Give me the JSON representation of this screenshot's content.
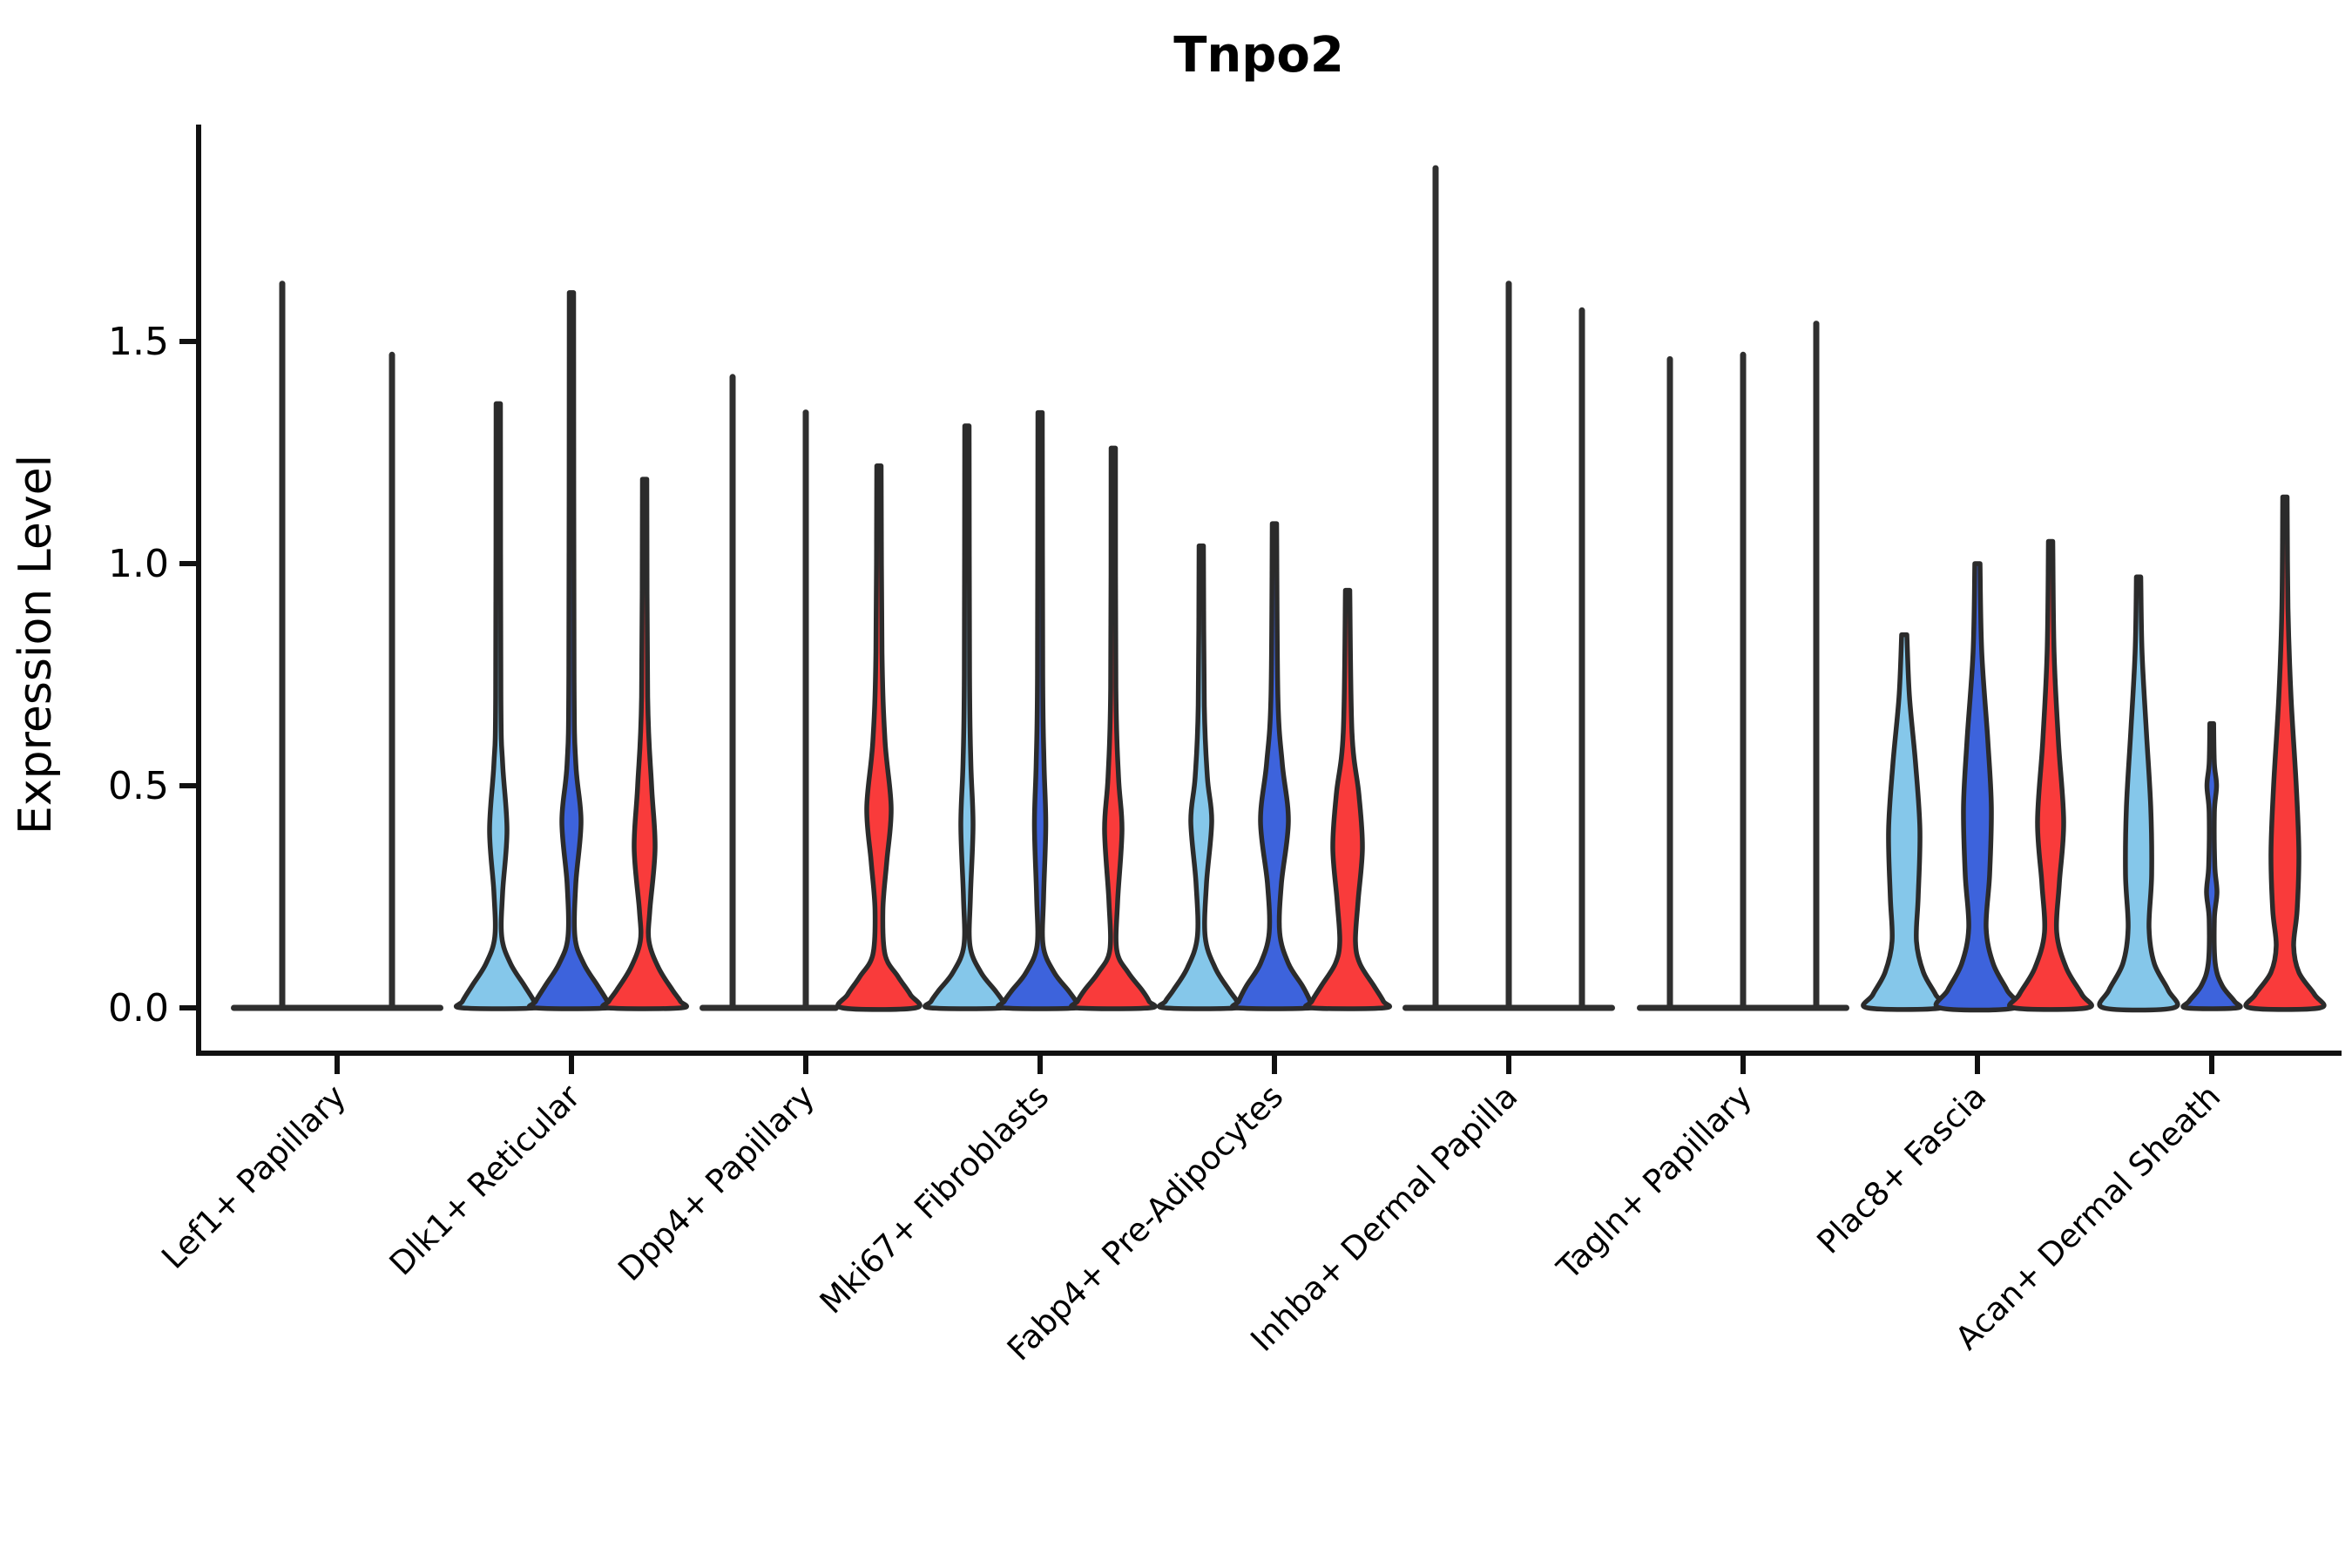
{
  "title": "Tnpo2",
  "axes": {
    "ylabel": "Expression Level",
    "yticks": [
      {
        "label": "0.0",
        "value": 0.0
      },
      {
        "label": "0.5",
        "value": 0.5
      },
      {
        "label": "1.0",
        "value": 1.0
      },
      {
        "label": "1.5",
        "value": 1.5
      }
    ],
    "ylim": [
      -0.1,
      1.99
    ],
    "grid": false,
    "legend": "none"
  },
  "palette": {
    "sample_colors": [
      "#85C7EA",
      "#3D63DC",
      "#F93B3B"
    ],
    "outline": "#2b2b2b",
    "spike": "#2f2f2f",
    "spine": "#111111",
    "text": "#000000"
  },
  "chart_data": {
    "type": "violin",
    "title": "Tnpo2",
    "xlabel": "",
    "ylabel": "Expression Level",
    "ylim": [
      -0.1,
      1.99
    ],
    "yticks": [
      0.0,
      0.5,
      1.0,
      1.5
    ],
    "categories": [
      "Lef1+ Papillary",
      "Dlk1+ Reticular",
      "Dpp4+ Papillary",
      "Mki67+ Fibroblasts",
      "Fabp4+ Pre-Adipocytes",
      "Inhba+ Dermal Papilla",
      "Tagln+ Papillary",
      "Plac8+ Fascia",
      "Acan+ Dermal Sheath"
    ],
    "max_values": {
      "Lef1+ Papillary": [
        1.63,
        1.47
      ],
      "Dlk1+ Reticular": [
        1.36,
        1.61,
        1.19
      ],
      "Dpp4+ Papillary": [
        1.42,
        1.34,
        1.22
      ],
      "Mki67+ Fibroblasts": [
        1.31,
        1.34,
        1.26
      ],
      "Fabp4+ Pre-Adipocytes": [
        1.04,
        1.09,
        0.94
      ],
      "Inhba+ Dermal Papilla": [
        1.89,
        1.63,
        1.57
      ],
      "Tagln+ Papillary": [
        1.46,
        1.47,
        1.54
      ],
      "Plac8+ Fascia": [
        0.84,
        1.0,
        1.05
      ],
      "Acan+ Dermal Sheath": [
        0.97,
        0.64,
        1.15
      ]
    },
    "groups": [
      {
        "category": "Lef1+ Papillary",
        "violins": [
          {
            "sample": 1,
            "color": "#85C7EA",
            "kind": "spike",
            "max": 1.63
          },
          {
            "sample": 2,
            "color": "#3D63DC",
            "kind": "spike",
            "max": 1.47
          }
        ]
      },
      {
        "category": "Dlk1+ Reticular",
        "violins": [
          {
            "sample": 1,
            "color": "#85C7EA",
            "kind": "shape",
            "max": 1.36,
            "profile": [
              [
                1.36,
                2.5
              ],
              [
                0.7,
                3
              ],
              [
                0.55,
                5
              ],
              [
                0.4,
                10
              ],
              [
                0.26,
                5
              ],
              [
                0.16,
                4
              ],
              [
                0.1,
                14
              ],
              [
                0.05,
                30
              ],
              [
                0.015,
                41
              ],
              [
                0,
                42
              ]
            ]
          },
          {
            "sample": 2,
            "color": "#3D63DC",
            "kind": "shape",
            "max": 1.61,
            "profile": [
              [
                1.61,
                2.5
              ],
              [
                0.75,
                3
              ],
              [
                0.55,
                5
              ],
              [
                0.42,
                11
              ],
              [
                0.28,
                5
              ],
              [
                0.16,
                4
              ],
              [
                0.1,
                14
              ],
              [
                0.05,
                30
              ],
              [
                0.015,
                41
              ],
              [
                0,
                42
              ]
            ]
          },
          {
            "sample": 3,
            "color": "#F93B3B",
            "kind": "shape",
            "max": 1.19,
            "profile": [
              [
                1.19,
                2.5
              ],
              [
                0.7,
                3.5
              ],
              [
                0.5,
                8
              ],
              [
                0.36,
                12
              ],
              [
                0.22,
                6
              ],
              [
                0.15,
                5
              ],
              [
                0.09,
                16
              ],
              [
                0.04,
                32
              ],
              [
                0.015,
                41
              ],
              [
                0,
                42
              ]
            ]
          }
        ]
      },
      {
        "category": "Dpp4+ Papillary",
        "violins": [
          {
            "sample": 1,
            "color": "#85C7EA",
            "kind": "spike",
            "max": 1.42
          },
          {
            "sample": 2,
            "color": "#3D63DC",
            "kind": "spike",
            "max": 1.34
          },
          {
            "sample": 3,
            "color": "#F93B3B",
            "kind": "shape",
            "max": 1.22,
            "profile": [
              [
                1.22,
                2.5
              ],
              [
                0.8,
                3.5
              ],
              [
                0.6,
                7
              ],
              [
                0.45,
                14
              ],
              [
                0.33,
                9
              ],
              [
                0.22,
                4.5
              ],
              [
                0.12,
                7
              ],
              [
                0.07,
                22
              ],
              [
                0.03,
                36
              ],
              [
                0,
                42
              ]
            ]
          }
        ]
      },
      {
        "category": "Mki67+ Fibroblasts",
        "violins": [
          {
            "sample": 1,
            "color": "#85C7EA",
            "kind": "shape",
            "max": 1.31,
            "profile": [
              [
                1.31,
                2.5
              ],
              [
                0.75,
                3
              ],
              [
                0.55,
                4.5
              ],
              [
                0.41,
                7
              ],
              [
                0.25,
                4
              ],
              [
                0.14,
                3.5
              ],
              [
                0.08,
                16
              ],
              [
                0.04,
                32
              ],
              [
                0.015,
                41
              ],
              [
                0,
                42
              ]
            ]
          },
          {
            "sample": 2,
            "color": "#3D63DC",
            "kind": "shape",
            "max": 1.34,
            "profile": [
              [
                1.34,
                2.5
              ],
              [
                0.75,
                3
              ],
              [
                0.55,
                4.5
              ],
              [
                0.41,
                6.5
              ],
              [
                0.25,
                4
              ],
              [
                0.14,
                3.5
              ],
              [
                0.08,
                16
              ],
              [
                0.04,
                32
              ],
              [
                0.015,
                41
              ],
              [
                0,
                42
              ]
            ]
          },
          {
            "sample": 3,
            "color": "#F93B3B",
            "kind": "shape",
            "max": 1.26,
            "profile": [
              [
                1.26,
                2.5
              ],
              [
                0.72,
                3
              ],
              [
                0.52,
                6
              ],
              [
                0.4,
                10
              ],
              [
                0.24,
                5
              ],
              [
                0.13,
                4
              ],
              [
                0.08,
                17
              ],
              [
                0.04,
                33
              ],
              [
                0.015,
                41
              ],
              [
                0,
                42
              ]
            ]
          }
        ]
      },
      {
        "category": "Fabp4+ Pre-Adipocytes",
        "violins": [
          {
            "sample": 1,
            "color": "#85C7EA",
            "kind": "shape",
            "max": 1.04,
            "profile": [
              [
                1.04,
                2.5
              ],
              [
                0.68,
                3.5
              ],
              [
                0.52,
                7
              ],
              [
                0.42,
                12
              ],
              [
                0.28,
                6
              ],
              [
                0.16,
                4.5
              ],
              [
                0.09,
                16
              ],
              [
                0.04,
                32
              ],
              [
                0.015,
                41
              ],
              [
                0,
                42
              ]
            ]
          },
          {
            "sample": 2,
            "color": "#3D63DC",
            "kind": "shape",
            "max": 1.09,
            "profile": [
              [
                1.09,
                2.5
              ],
              [
                0.7,
                4
              ],
              [
                0.55,
                9
              ],
              [
                0.42,
                16
              ],
              [
                0.28,
                8
              ],
              [
                0.17,
                6
              ],
              [
                0.1,
                16
              ],
              [
                0.05,
                32
              ],
              [
                0.015,
                41
              ],
              [
                0,
                42
              ]
            ]
          },
          {
            "sample": 3,
            "color": "#F93B3B",
            "kind": "shape",
            "max": 0.94,
            "profile": [
              [
                0.94,
                2.5
              ],
              [
                0.62,
                5
              ],
              [
                0.48,
                13
              ],
              [
                0.36,
                17
              ],
              [
                0.24,
                12
              ],
              [
                0.15,
                9
              ],
              [
                0.1,
                14
              ],
              [
                0.05,
                30
              ],
              [
                0.015,
                41
              ],
              [
                0,
                42
              ]
            ]
          }
        ]
      },
      {
        "category": "Inhba+ Dermal Papilla",
        "violins": [
          {
            "sample": 1,
            "color": "#85C7EA",
            "kind": "spike",
            "max": 1.89
          },
          {
            "sample": 2,
            "color": "#3D63DC",
            "kind": "spike",
            "max": 1.63
          },
          {
            "sample": 3,
            "color": "#F93B3B",
            "kind": "spike",
            "max": 1.57
          }
        ]
      },
      {
        "category": "Tagln+ Papillary",
        "violins": [
          {
            "sample": 1,
            "color": "#85C7EA",
            "kind": "spike",
            "max": 1.46
          },
          {
            "sample": 2,
            "color": "#3D63DC",
            "kind": "spike",
            "max": 1.47
          },
          {
            "sample": 3,
            "color": "#F93B3B",
            "kind": "spike",
            "max": 1.54
          }
        ]
      },
      {
        "category": "Plac8+ Fascia",
        "violins": [
          {
            "sample": 1,
            "color": "#85C7EA",
            "kind": "shape",
            "max": 0.84,
            "profile": [
              [
                0.84,
                3
              ],
              [
                0.7,
                6
              ],
              [
                0.55,
                13
              ],
              [
                0.4,
                18
              ],
              [
                0.25,
                16
              ],
              [
                0.15,
                14
              ],
              [
                0.08,
                22
              ],
              [
                0.03,
                36
              ],
              [
                0,
                42
              ]
            ]
          },
          {
            "sample": 2,
            "color": "#3D63DC",
            "kind": "shape",
            "max": 1.0,
            "profile": [
              [
                1.0,
                3
              ],
              [
                0.8,
                5
              ],
              [
                0.6,
                12
              ],
              [
                0.45,
                16
              ],
              [
                0.3,
                14
              ],
              [
                0.18,
                10
              ],
              [
                0.1,
                18
              ],
              [
                0.04,
                34
              ],
              [
                0,
                43
              ]
            ]
          },
          {
            "sample": 3,
            "color": "#F93B3B",
            "kind": "shape",
            "max": 1.05,
            "profile": [
              [
                1.05,
                2.5
              ],
              [
                0.8,
                4
              ],
              [
                0.6,
                9
              ],
              [
                0.42,
                15
              ],
              [
                0.28,
                10
              ],
              [
                0.17,
                7
              ],
              [
                0.09,
                18
              ],
              [
                0.03,
                36
              ],
              [
                0,
                42
              ]
            ]
          }
        ]
      },
      {
        "category": "Acan+ Dermal Sheath",
        "violins": [
          {
            "sample": 1,
            "color": "#85C7EA",
            "kind": "shape",
            "max": 0.97,
            "profile": [
              [
                0.97,
                2.5
              ],
              [
                0.8,
                4
              ],
              [
                0.62,
                9
              ],
              [
                0.45,
                14
              ],
              [
                0.3,
                15
              ],
              [
                0.18,
                12
              ],
              [
                0.1,
                18
              ],
              [
                0.04,
                34
              ],
              [
                0,
                40
              ]
            ]
          },
          {
            "sample": 2,
            "color": "#3D63DC",
            "kind": "shape",
            "max": 0.64,
            "profile": [
              [
                0.64,
                2.2
              ],
              [
                0.55,
                3
              ],
              [
                0.5,
                5.5
              ],
              [
                0.44,
                3
              ],
              [
                0.32,
                3.5
              ],
              [
                0.26,
                6
              ],
              [
                0.2,
                3
              ],
              [
                0.1,
                4
              ],
              [
                0.05,
                12
              ],
              [
                0.015,
                26
              ],
              [
                0,
                29
              ]
            ]
          },
          {
            "sample": 3,
            "color": "#F93B3B",
            "kind": "shape",
            "max": 1.15,
            "profile": [
              [
                1.15,
                2.5
              ],
              [
                0.9,
                3.5
              ],
              [
                0.7,
                7
              ],
              [
                0.5,
                13
              ],
              [
                0.35,
                16
              ],
              [
                0.22,
                14
              ],
              [
                0.14,
                10
              ],
              [
                0.08,
                16
              ],
              [
                0.03,
                34
              ],
              [
                0,
                40
              ]
            ]
          }
        ]
      }
    ]
  }
}
